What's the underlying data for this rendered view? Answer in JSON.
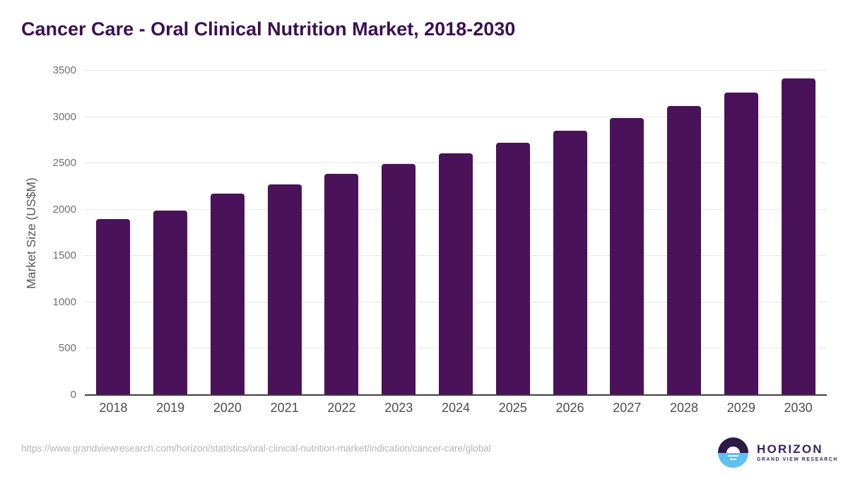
{
  "title": "Cancer Care - Oral Clinical Nutrition Market, 2018-2030",
  "footer": {
    "source_url": "https://www.grandviewresearch.com/horizon/statistics/oral-clinical-nutrition-market/indication/cancer-care/global"
  },
  "logo": {
    "name": "HORIZON",
    "subtitle": "GRAND VIEW RESEARCH"
  },
  "colors": {
    "bar": "#4a1259",
    "title": "#3b1053",
    "grid": "#e8e8e8",
    "axis_line": "#3d3d3d",
    "y_tick_label": "#717171",
    "x_tick_label": "#4d4d4d",
    "y_axis_title": "#595959",
    "footer_text": "#b5b5b5",
    "logo_navy": "#2b1b44",
    "logo_blue": "#5ec1ef",
    "logo_text": "#3a2361"
  },
  "chart_data": {
    "type": "bar",
    "title": "Cancer Care - Oral Clinical Nutrition Market, 2018-2030",
    "categories": [
      "2018",
      "2019",
      "2020",
      "2021",
      "2022",
      "2023",
      "2024",
      "2025",
      "2026",
      "2027",
      "2028",
      "2029",
      "2030"
    ],
    "values": [
      1900,
      1990,
      2175,
      2275,
      2390,
      2495,
      2610,
      2725,
      2855,
      2990,
      3120,
      3265,
      3420
    ],
    "xlabel": "",
    "ylabel": "Market Size (US$M)",
    "ylim": [
      0,
      3500
    ],
    "ytick_step": 500,
    "yticks": [
      0,
      500,
      1000,
      1500,
      2000,
      2500,
      3000,
      3500
    ],
    "grid": true,
    "legend_position": "none",
    "bar_color": "#4a1259"
  }
}
